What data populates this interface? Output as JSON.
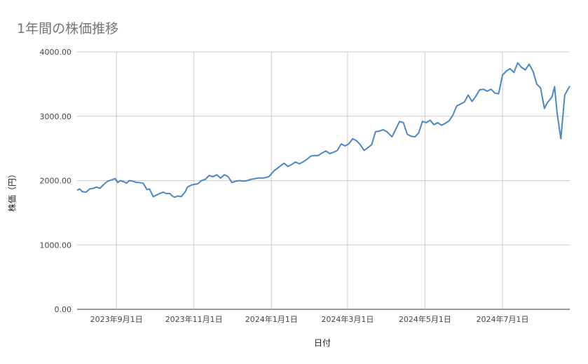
{
  "chart_data": {
    "type": "line",
    "title": "1年間の株価推移",
    "xlabel": "日付",
    "ylabel": "株価（円）",
    "y_ticks": [
      "0.00",
      "1000.00",
      "2000.00",
      "3000.00",
      "4000.00"
    ],
    "ylim": [
      0,
      4000
    ],
    "x_ticks": [
      {
        "label": "2023年9月1日",
        "date": "2023-09-01"
      },
      {
        "label": "2023年11月1日",
        "date": "2023-11-01"
      },
      {
        "label": "2024年1月1日",
        "date": "2024-01-01"
      },
      {
        "label": "2024年3月1日",
        "date": "2024-03-01"
      },
      {
        "label": "2024年5月1日",
        "date": "2024-05-01"
      },
      {
        "label": "2024年7月1日",
        "date": "2024-07-01"
      }
    ],
    "xlim": [
      "2023-08-01",
      "2024-08-23"
    ],
    "grid": true,
    "legend": "none",
    "series_color": "#4a86c8",
    "series": [
      {
        "x": [
          "2023-08-01",
          "2023-08-03",
          "2023-08-05",
          "2023-08-08",
          "2023-08-11",
          "2023-08-14",
          "2023-08-16",
          "2023-08-19",
          "2023-08-22",
          "2023-08-25",
          "2023-08-28",
          "2023-08-31",
          "2023-09-02",
          "2023-09-04",
          "2023-09-07",
          "2023-09-09",
          "2023-09-11",
          "2023-09-14",
          "2023-09-17",
          "2023-09-19",
          "2023-09-22",
          "2023-09-25",
          "2023-09-27",
          "2023-09-30",
          "2023-10-02",
          "2023-10-05",
          "2023-10-08",
          "2023-10-10",
          "2023-10-13",
          "2023-10-15",
          "2023-10-17",
          "2023-10-19",
          "2023-10-22",
          "2023-10-25",
          "2023-10-27",
          "2023-10-30",
          "2023-11-01",
          "2023-11-04",
          "2023-11-07",
          "2023-11-10",
          "2023-11-13",
          "2023-11-16",
          "2023-11-19",
          "2023-11-22",
          "2023-11-25",
          "2023-11-28",
          "2023-12-01",
          "2023-12-04",
          "2023-12-07",
          "2023-12-10",
          "2023-12-13",
          "2023-12-16",
          "2023-12-19",
          "2023-12-22",
          "2023-12-26",
          "2023-12-30",
          "2024-01-03",
          "2024-01-07",
          "2024-01-11",
          "2024-01-14",
          "2024-01-17",
          "2024-01-20",
          "2024-01-23",
          "2024-01-26",
          "2024-01-29",
          "2024-02-01",
          "2024-02-04",
          "2024-02-07",
          "2024-02-10",
          "2024-02-13",
          "2024-02-16",
          "2024-02-19",
          "2024-02-22",
          "2024-02-25",
          "2024-02-28",
          "2024-03-02",
          "2024-03-05",
          "2024-03-08",
          "2024-03-11",
          "2024-03-14",
          "2024-03-17",
          "2024-03-20",
          "2024-03-23",
          "2024-03-26",
          "2024-03-29",
          "2024-04-01",
          "2024-04-03",
          "2024-04-05",
          "2024-04-08",
          "2024-04-11",
          "2024-04-14",
          "2024-04-17",
          "2024-04-20",
          "2024-04-23",
          "2024-04-26",
          "2024-04-29",
          "2024-05-02",
          "2024-05-05",
          "2024-05-08",
          "2024-05-11",
          "2024-05-14",
          "2024-05-17",
          "2024-05-20",
          "2024-05-23",
          "2024-05-26",
          "2024-05-29",
          "2024-06-01",
          "2024-06-04",
          "2024-06-07",
          "2024-06-10",
          "2024-06-13",
          "2024-06-16",
          "2024-06-19",
          "2024-06-22",
          "2024-06-25",
          "2024-06-28",
          "2024-07-01",
          "2024-07-04",
          "2024-07-07",
          "2024-07-10",
          "2024-07-13",
          "2024-07-16",
          "2024-07-19",
          "2024-07-22",
          "2024-07-25",
          "2024-07-28",
          "2024-07-31",
          "2024-08-03",
          "2024-08-05",
          "2024-08-07",
          "2024-08-09",
          "2024-08-11",
          "2024-08-13",
          "2024-08-16",
          "2024-08-19",
          "2024-08-23"
        ],
        "values": [
          1850,
          1870,
          1830,
          1820,
          1870,
          1880,
          1900,
          1880,
          1940,
          1990,
          2010,
          2030,
          1970,
          2000,
          1980,
          1960,
          2000,
          1990,
          1970,
          1970,
          1960,
          1860,
          1870,
          1750,
          1770,
          1800,
          1820,
          1800,
          1800,
          1760,
          1740,
          1760,
          1750,
          1820,
          1900,
          1930,
          1940,
          1950,
          2000,
          2020,
          2080,
          2060,
          2090,
          2040,
          2090,
          2060,
          1970,
          1990,
          2000,
          1990,
          2000,
          2020,
          2030,
          2040,
          2040,
          2060,
          2150,
          2210,
          2270,
          2220,
          2250,
          2290,
          2260,
          2290,
          2330,
          2380,
          2390,
          2390,
          2430,
          2460,
          2420,
          2440,
          2470,
          2570,
          2540,
          2570,
          2650,
          2620,
          2560,
          2470,
          2510,
          2560,
          2760,
          2770,
          2790,
          2760,
          2720,
          2680,
          2800,
          2920,
          2900,
          2720,
          2690,
          2680,
          2740,
          2920,
          2900,
          2940,
          2870,
          2900,
          2860,
          2890,
          2930,
          3020,
          3160,
          3190,
          3220,
          3330,
          3230,
          3310,
          3410,
          3420,
          3390,
          3420,
          3360,
          3350,
          3640,
          3700,
          3740,
          3680,
          3830,
          3760,
          3720,
          3810,
          3700,
          3500,
          3440,
          3120,
          3200,
          3250,
          3300,
          3460,
          3050,
          2650,
          3330,
          3470
        ]
      }
    ]
  }
}
